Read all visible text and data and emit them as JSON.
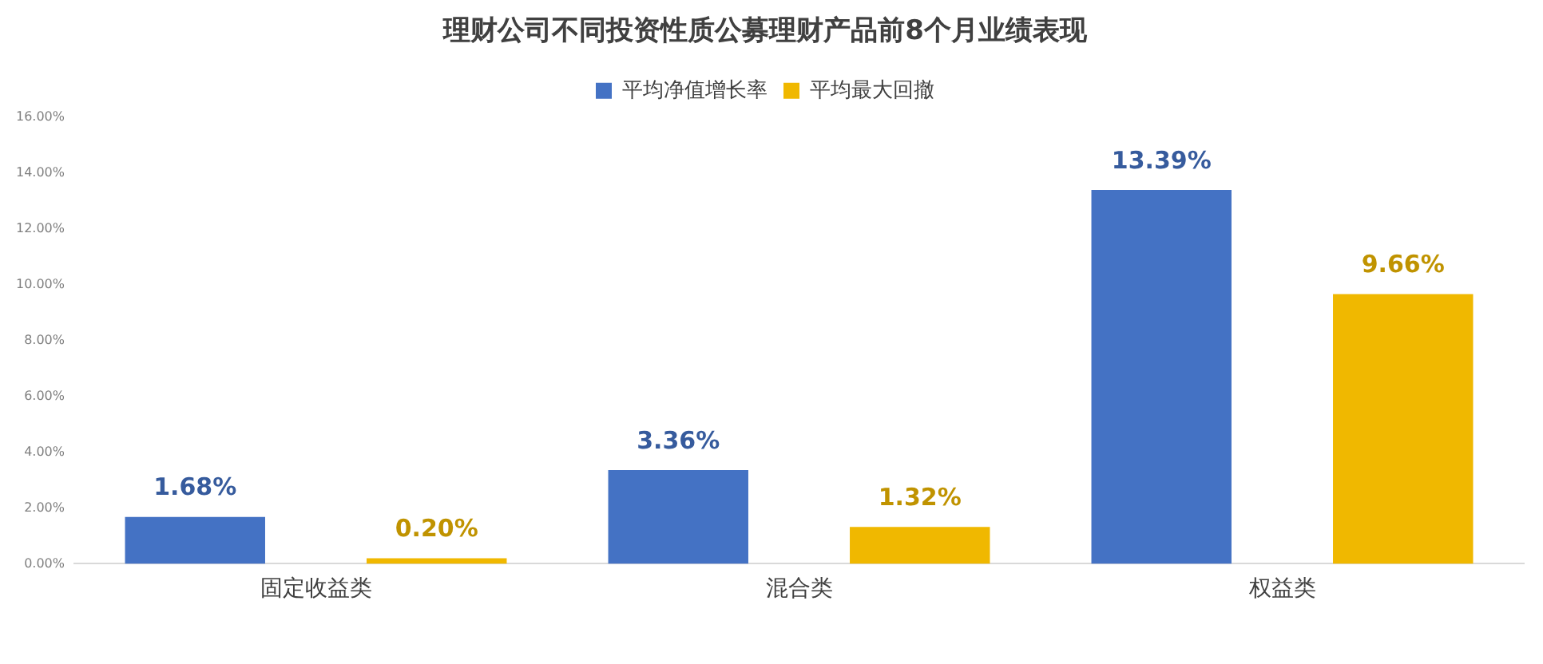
{
  "chart_data": {
    "type": "bar",
    "title": "理财公司不同投资性质公募理财产品前8个月业绩表现",
    "categories": [
      "固定收益类",
      "混合类",
      "权益类"
    ],
    "series": [
      {
        "name": "平均净值增长率",
        "color": "#4472c4",
        "values": [
          1.68,
          3.36,
          13.39
        ],
        "value_labels": [
          "1.68%",
          "3.36%",
          "13.39%"
        ]
      },
      {
        "name": "平均最大回撤",
        "color": "#f0b800",
        "values": [
          0.2,
          1.32,
          9.66
        ],
        "value_labels": [
          "0.20%",
          "1.32%",
          "9.66%"
        ]
      }
    ],
    "ylim": [
      0,
      16
    ],
    "yticks": [
      {
        "value": 0,
        "label": "0.00%"
      },
      {
        "value": 2,
        "label": "2.00%"
      },
      {
        "value": 4,
        "label": "4.00%"
      },
      {
        "value": 6,
        "label": "6.00%"
      },
      {
        "value": 8,
        "label": "8.00%"
      },
      {
        "value": 10,
        "label": "10.00%"
      },
      {
        "value": 12,
        "label": "12.00%"
      },
      {
        "value": 14,
        "label": "14.00%"
      },
      {
        "value": 16,
        "label": "16.00%"
      }
    ],
    "grid": false,
    "legend": "top"
  }
}
